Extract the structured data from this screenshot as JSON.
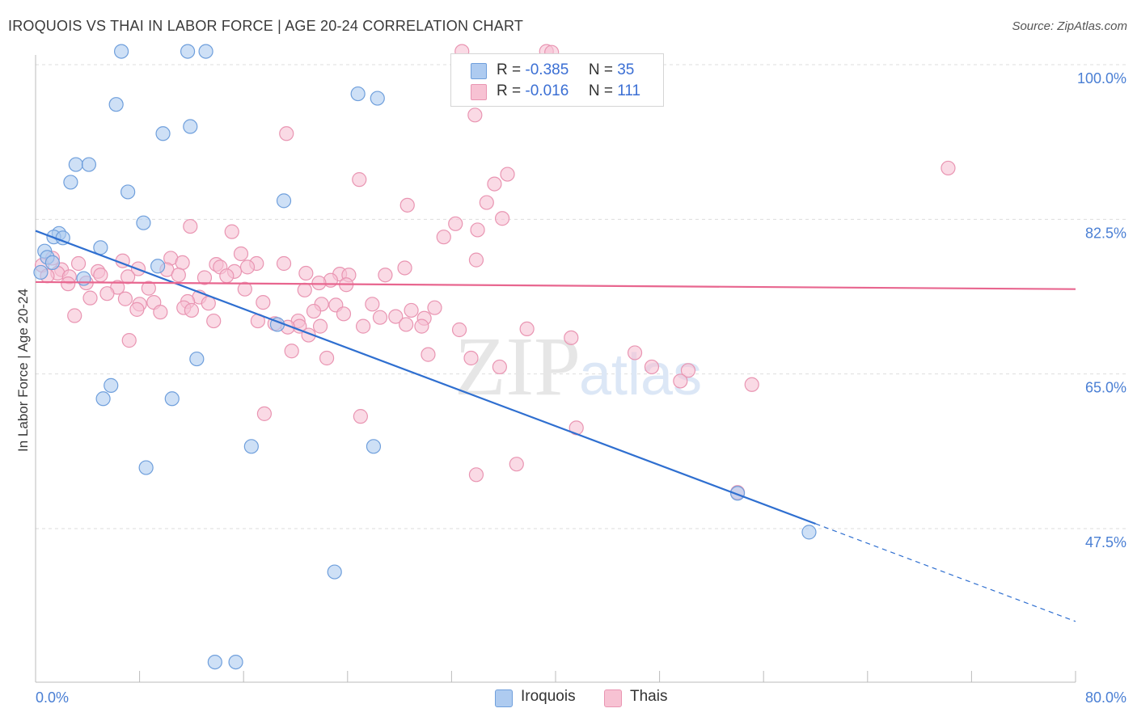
{
  "title": "IROQUOIS VS THAI IN LABOR FORCE | AGE 20-24 CORRELATION CHART",
  "source": "Source: ZipAtlas.com",
  "colors": {
    "iroquois_fill": "#aecbf0",
    "iroquois_stroke": "#6f9fdc",
    "iroquois_line": "#2f6fd0",
    "thais_fill": "#f7c2d3",
    "thais_stroke": "#e995b2",
    "thais_line": "#e8668f",
    "tick_text": "#4a7fd4",
    "grid": "#dddddd"
  },
  "legend": {
    "iroquois": {
      "r_label": "R =",
      "r_value": "-0.385",
      "n_label": "N =",
      "n_value": "35"
    },
    "thais": {
      "r_label": "R =",
      "r_value": "-0.016",
      "n_label": "N =",
      "n_value": "111"
    }
  },
  "bottom_legend": {
    "iroquois": "Iroquois",
    "thais": "Thais"
  },
  "watermark": {
    "zip": "ZIP",
    "atlas": "atlas"
  },
  "chart_data": {
    "type": "scatter",
    "xlabel": "",
    "ylabel": "In Labor Force | Age 20-24",
    "xlim": [
      0,
      80
    ],
    "ylim": [
      30,
      102
    ],
    "y_ticks": [
      {
        "value": 47.5,
        "label": "47.5%"
      },
      {
        "value": 65.0,
        "label": "65.0%"
      },
      {
        "value": 82.5,
        "label": "82.5%"
      },
      {
        "value": 100.0,
        "label": "100.0%"
      }
    ],
    "x_tick_labels": {
      "left": "0.0%",
      "right": "80.0%"
    },
    "x_minor_ticks": [
      0,
      8,
      16,
      24,
      32,
      40,
      48,
      56,
      64,
      72,
      80
    ],
    "series": [
      {
        "name": "Iroquois",
        "R": -0.385,
        "N": 35,
        "trend": {
          "x0": 0,
          "y0": 81.2,
          "x1": 80,
          "y1": 37.0,
          "solid_until_x": 60
        },
        "points": [
          [
            6.6,
            101.5
          ],
          [
            11.7,
            101.5
          ],
          [
            13.1,
            101.5
          ],
          [
            24.8,
            96.7
          ],
          [
            26.3,
            96.2
          ],
          [
            6.2,
            95.5
          ],
          [
            9.8,
            92.2
          ],
          [
            11.9,
            93.0
          ],
          [
            3.1,
            88.7
          ],
          [
            4.1,
            88.7
          ],
          [
            2.7,
            86.7
          ],
          [
            7.1,
            85.6
          ],
          [
            19.1,
            84.6
          ],
          [
            8.3,
            82.1
          ],
          [
            1.8,
            80.9
          ],
          [
            1.4,
            80.5
          ],
          [
            2.1,
            80.4
          ],
          [
            5.0,
            79.3
          ],
          [
            0.7,
            78.9
          ],
          [
            0.9,
            78.2
          ],
          [
            1.3,
            77.6
          ],
          [
            0.4,
            76.5
          ],
          [
            9.4,
            77.2
          ],
          [
            3.7,
            75.8
          ],
          [
            18.6,
            70.6
          ],
          [
            12.4,
            66.7
          ],
          [
            5.8,
            63.7
          ],
          [
            5.2,
            62.2
          ],
          [
            10.5,
            62.2
          ],
          [
            16.6,
            56.8
          ],
          [
            26.0,
            56.8
          ],
          [
            8.5,
            54.4
          ],
          [
            54.0,
            51.5
          ],
          [
            59.5,
            47.1
          ],
          [
            23.0,
            42.6
          ],
          [
            13.8,
            32.4
          ],
          [
            15.4,
            32.4
          ]
        ]
      },
      {
        "name": "Thais",
        "R": -0.016,
        "N": 111,
        "trend": {
          "x0": 0,
          "y0": 75.4,
          "x1": 80,
          "y1": 74.6
        },
        "points": [
          [
            32.8,
            101.5
          ],
          [
            39.3,
            101.5
          ],
          [
            39.7,
            101.4
          ],
          [
            33.8,
            94.3
          ],
          [
            19.3,
            92.2
          ],
          [
            70.2,
            88.3
          ],
          [
            36.3,
            87.6
          ],
          [
            24.9,
            87.0
          ],
          [
            35.3,
            86.5
          ],
          [
            28.6,
            84.1
          ],
          [
            34.7,
            84.4
          ],
          [
            35.9,
            82.6
          ],
          [
            32.3,
            82.0
          ],
          [
            11.9,
            81.7
          ],
          [
            34.0,
            81.3
          ],
          [
            15.1,
            81.1
          ],
          [
            31.4,
            80.5
          ],
          [
            15.8,
            78.6
          ],
          [
            1.3,
            78.1
          ],
          [
            33.9,
            77.9
          ],
          [
            10.4,
            78.1
          ],
          [
            6.7,
            77.8
          ],
          [
            11.3,
            77.6
          ],
          [
            17.0,
            77.5
          ],
          [
            19.1,
            77.5
          ],
          [
            13.9,
            77.4
          ],
          [
            14.2,
            77.1
          ],
          [
            16.3,
            77.1
          ],
          [
            0.5,
            77.3
          ],
          [
            3.3,
            77.5
          ],
          [
            28.4,
            77.0
          ],
          [
            2.0,
            76.8
          ],
          [
            7.9,
            76.9
          ],
          [
            4.8,
            76.6
          ],
          [
            10.1,
            76.8
          ],
          [
            15.3,
            76.6
          ],
          [
            11.0,
            76.2
          ],
          [
            1.7,
            76.4
          ],
          [
            0.9,
            76.1
          ],
          [
            2.6,
            76.0
          ],
          [
            5.0,
            76.2
          ],
          [
            14.7,
            76.1
          ],
          [
            20.8,
            76.4
          ],
          [
            23.4,
            76.3
          ],
          [
            24.1,
            76.2
          ],
          [
            26.9,
            76.2
          ],
          [
            22.7,
            75.6
          ],
          [
            21.8,
            75.3
          ],
          [
            7.1,
            76.0
          ],
          [
            13.0,
            75.9
          ],
          [
            3.9,
            75.3
          ],
          [
            8.7,
            74.7
          ],
          [
            16.1,
            74.6
          ],
          [
            6.3,
            74.8
          ],
          [
            23.9,
            75.1
          ],
          [
            20.7,
            74.5
          ],
          [
            2.5,
            75.2
          ],
          [
            5.5,
            74.1
          ],
          [
            4.2,
            73.6
          ],
          [
            12.6,
            73.7
          ],
          [
            6.9,
            73.5
          ],
          [
            9.1,
            73.1
          ],
          [
            11.7,
            73.2
          ],
          [
            17.5,
            73.1
          ],
          [
            13.3,
            73.0
          ],
          [
            8.0,
            72.9
          ],
          [
            25.9,
            72.9
          ],
          [
            28.9,
            72.2
          ],
          [
            22.0,
            72.9
          ],
          [
            30.7,
            72.5
          ],
          [
            26.5,
            71.4
          ],
          [
            11.4,
            72.5
          ],
          [
            23.1,
            72.8
          ],
          [
            12.0,
            72.2
          ],
          [
            9.6,
            72.0
          ],
          [
            7.8,
            72.3
          ],
          [
            21.4,
            72.1
          ],
          [
            27.7,
            71.5
          ],
          [
            3.0,
            71.6
          ],
          [
            29.9,
            71.3
          ],
          [
            23.7,
            71.8
          ],
          [
            13.7,
            71.0
          ],
          [
            17.1,
            71.0
          ],
          [
            25.2,
            70.4
          ],
          [
            29.7,
            70.4
          ],
          [
            20.2,
            71.0
          ],
          [
            18.4,
            70.7
          ],
          [
            20.3,
            70.4
          ],
          [
            21.9,
            70.4
          ],
          [
            28.5,
            70.6
          ],
          [
            32.6,
            70.0
          ],
          [
            37.8,
            70.1
          ],
          [
            19.4,
            70.3
          ],
          [
            21.0,
            69.4
          ],
          [
            7.2,
            68.8
          ],
          [
            41.2,
            69.1
          ],
          [
            19.7,
            67.6
          ],
          [
            30.2,
            67.2
          ],
          [
            22.4,
            66.8
          ],
          [
            33.5,
            66.8
          ],
          [
            46.1,
            67.4
          ],
          [
            35.7,
            65.8
          ],
          [
            47.4,
            65.8
          ],
          [
            50.2,
            65.4
          ],
          [
            49.6,
            64.2
          ],
          [
            55.1,
            63.8
          ],
          [
            17.6,
            60.5
          ],
          [
            25.0,
            60.2
          ],
          [
            41.6,
            58.9
          ],
          [
            37.0,
            54.8
          ],
          [
            33.9,
            53.6
          ],
          [
            54.0,
            51.6
          ]
        ]
      }
    ]
  }
}
